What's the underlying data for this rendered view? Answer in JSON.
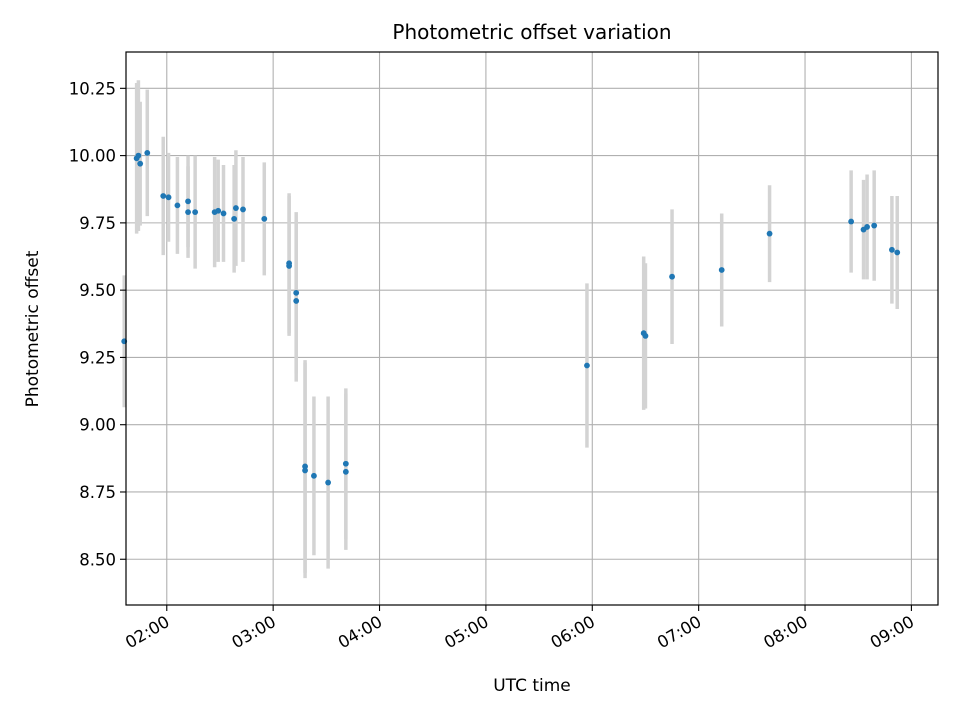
{
  "chart_data": {
    "type": "scatter",
    "title": "Photometric offset variation",
    "xlabel": "UTC time",
    "ylabel": "Photometric offset",
    "xlim": [
      "01:37",
      "09:15"
    ],
    "ylim": [
      8.33,
      10.385
    ],
    "x_ticks": [
      "02:00",
      "03:00",
      "04:00",
      "05:00",
      "06:00",
      "07:00",
      "08:00",
      "09:00"
    ],
    "y_ticks": [
      "8.50",
      "8.75",
      "9.00",
      "9.25",
      "9.50",
      "9.75",
      "10.00",
      "10.25"
    ],
    "grid": true,
    "colors": {
      "points": "#1f77b4",
      "error_bars": "#d3d3d3",
      "grid": "#b0b0b0",
      "axes": "#000000"
    },
    "points": [
      {
        "t": "01:36",
        "y": 9.31,
        "err": 0.245
      },
      {
        "t": "01:43",
        "y": 9.99,
        "err": 0.28
      },
      {
        "t": "01:44",
        "y": 10.0,
        "err": 0.28
      },
      {
        "t": "01:45",
        "y": 9.97,
        "err": 0.23
      },
      {
        "t": "01:49",
        "y": 10.01,
        "err": 0.235
      },
      {
        "t": "01:58",
        "y": 9.85,
        "err": 0.22
      },
      {
        "t": "02:01",
        "y": 9.845,
        "err": 0.165
      },
      {
        "t": "02:06",
        "y": 9.815,
        "err": 0.18
      },
      {
        "t": "02:12",
        "y": 9.83,
        "err": 0.17
      },
      {
        "t": "02:12",
        "y": 9.79,
        "err": 0.17
      },
      {
        "t": "02:16",
        "y": 9.79,
        "err": 0.21
      },
      {
        "t": "02:27",
        "y": 9.79,
        "err": 0.205
      },
      {
        "t": "02:29",
        "y": 9.795,
        "err": 0.19
      },
      {
        "t": "02:32",
        "y": 9.785,
        "err": 0.18
      },
      {
        "t": "02:38",
        "y": 9.765,
        "err": 0.2
      },
      {
        "t": "02:39",
        "y": 9.805,
        "err": 0.215
      },
      {
        "t": "02:43",
        "y": 9.8,
        "err": 0.195
      },
      {
        "t": "02:55",
        "y": 9.765,
        "err": 0.21
      },
      {
        "t": "03:09",
        "y": 9.6,
        "err": 0.26
      },
      {
        "t": "03:09",
        "y": 9.59,
        "err": 0.26
      },
      {
        "t": "03:13",
        "y": 9.49,
        "err": 0.3
      },
      {
        "t": "03:13",
        "y": 9.46,
        "err": 0.3
      },
      {
        "t": "03:18",
        "y": 8.845,
        "err": 0.395
      },
      {
        "t": "03:18",
        "y": 8.83,
        "err": 0.4
      },
      {
        "t": "03:23",
        "y": 8.81,
        "err": 0.295
      },
      {
        "t": "03:31",
        "y": 8.785,
        "err": 0.32
      },
      {
        "t": "03:41",
        "y": 8.855,
        "err": 0.28
      },
      {
        "t": "03:41",
        "y": 8.825,
        "err": 0.29
      },
      {
        "t": "05:57",
        "y": 9.22,
        "err": 0.305
      },
      {
        "t": "06:29",
        "y": 9.34,
        "err": 0.285
      },
      {
        "t": "06:30",
        "y": 9.33,
        "err": 0.27
      },
      {
        "t": "06:45",
        "y": 9.55,
        "err": 0.25
      },
      {
        "t": "07:13",
        "y": 9.575,
        "err": 0.21
      },
      {
        "t": "07:40",
        "y": 9.71,
        "err": 0.18
      },
      {
        "t": "08:26",
        "y": 9.755,
        "err": 0.19
      },
      {
        "t": "08:33",
        "y": 9.725,
        "err": 0.185
      },
      {
        "t": "08:35",
        "y": 9.735,
        "err": 0.195
      },
      {
        "t": "08:39",
        "y": 9.74,
        "err": 0.205
      },
      {
        "t": "08:49",
        "y": 9.65,
        "err": 0.2
      },
      {
        "t": "08:52",
        "y": 9.64,
        "err": 0.21
      }
    ]
  }
}
